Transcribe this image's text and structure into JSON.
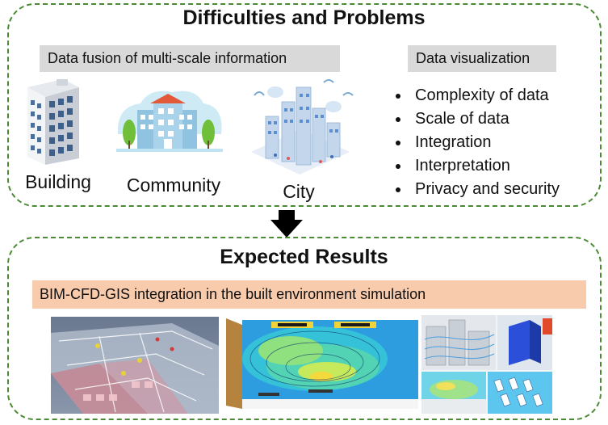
{
  "top": {
    "title": "Difficulties and Problems",
    "fusion_label": "Data fusion of multi-scale information",
    "viz_label": "Data visualization",
    "items": [
      {
        "label": "Building",
        "icon": "building-icon"
      },
      {
        "label": "Community",
        "icon": "community-icon"
      },
      {
        "label": "City",
        "icon": "city-icon"
      }
    ],
    "bullets": [
      "Complexity of data",
      "Scale of data",
      "Integration",
      "Interpretation",
      "Privacy and security"
    ]
  },
  "arrow": {
    "icon": "down-arrow-icon"
  },
  "bottom": {
    "title": "Expected Results",
    "band_label": "BIM-CFD-GIS integration in the built environment simulation",
    "images": [
      "bim-model-image",
      "cfd-room-contour-image",
      "urban-cfd-collage-image"
    ]
  },
  "colors": {
    "border": "#4a8a32",
    "gray": "#d9d9d9",
    "orange": "#f8cbad"
  }
}
